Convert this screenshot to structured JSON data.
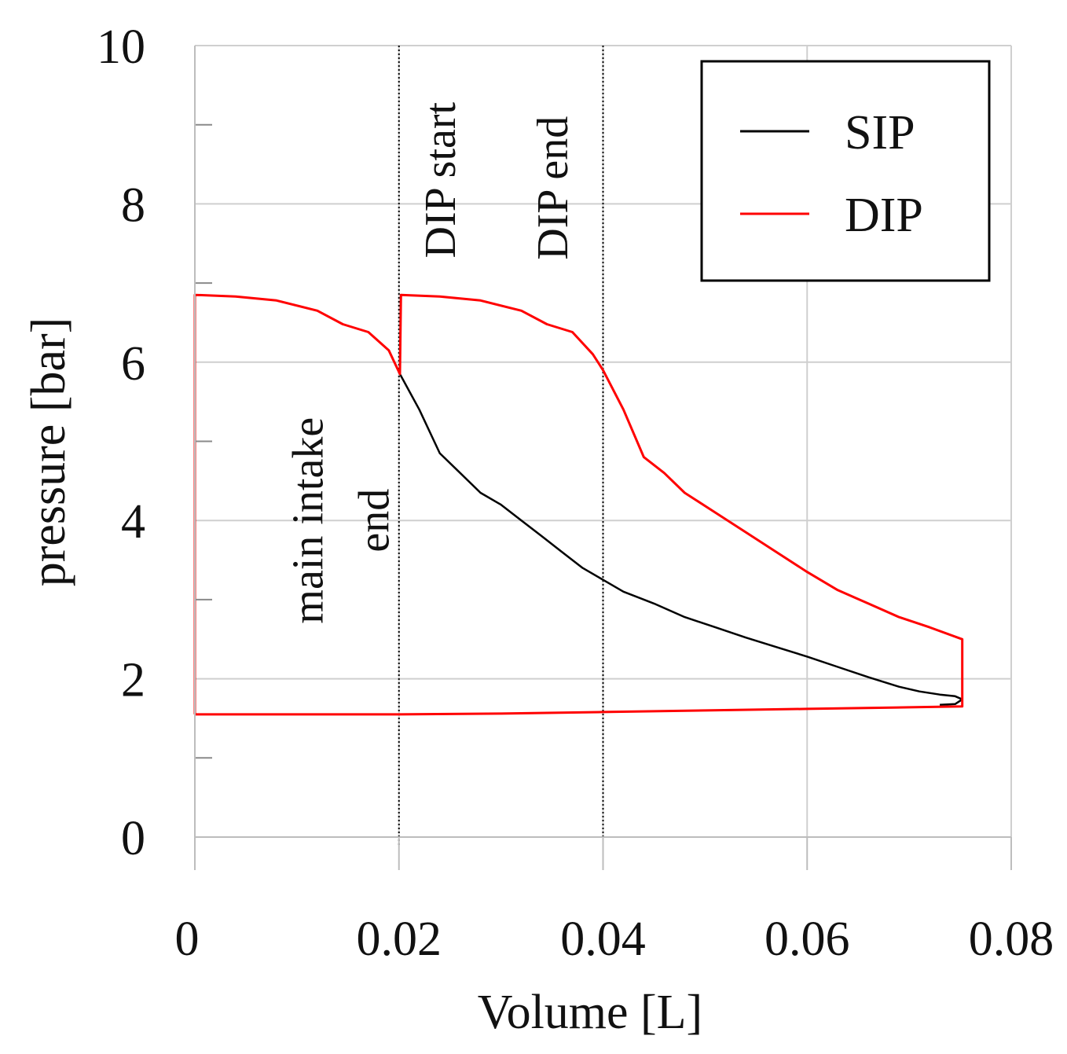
{
  "chart_data": {
    "type": "line",
    "title": "",
    "xlabel": "Volume [L]",
    "ylabel": "pressure [bar]",
    "xlim": [
      0,
      0.08
    ],
    "ylim": [
      0,
      10
    ],
    "x_ticks": [
      0,
      0.02,
      0.04,
      0.06,
      0.08
    ],
    "x_tick_labels": [
      "0",
      "0.02",
      "0.04",
      "0.06",
      "0.08"
    ],
    "y_ticks": [
      0,
      2,
      4,
      6,
      8,
      10
    ],
    "y_tick_labels": [
      "0",
      "2",
      "4",
      "6",
      "8",
      "10"
    ],
    "grid": true,
    "legend_position": "top-right",
    "vlines": [
      0.02,
      0.04
    ],
    "annotations": [
      {
        "id": "main",
        "lines": [
          "main intake",
          "end"
        ],
        "x": 0.0125,
        "y": 4.0,
        "rotation": -90
      },
      {
        "id": "dip_start",
        "lines": [
          "DIP start"
        ],
        "x": 0.0255,
        "y": 8.3,
        "rotation": -90
      },
      {
        "id": "dip_end",
        "lines": [
          "DIP end"
        ],
        "x": 0.0365,
        "y": 8.2,
        "rotation": -90
      }
    ],
    "series": [
      {
        "name": "SIP",
        "color": "#000000",
        "points": [
          [
            0.0201,
            5.85
          ],
          [
            0.022,
            5.4
          ],
          [
            0.024,
            4.85
          ],
          [
            0.026,
            4.6
          ],
          [
            0.028,
            4.35
          ],
          [
            0.03,
            4.2
          ],
          [
            0.032,
            4.0
          ],
          [
            0.034,
            3.8
          ],
          [
            0.036,
            3.6
          ],
          [
            0.038,
            3.4
          ],
          [
            0.04,
            3.25
          ],
          [
            0.042,
            3.1
          ],
          [
            0.045,
            2.95
          ],
          [
            0.048,
            2.78
          ],
          [
            0.051,
            2.65
          ],
          [
            0.054,
            2.52
          ],
          [
            0.057,
            2.4
          ],
          [
            0.06,
            2.28
          ],
          [
            0.063,
            2.15
          ],
          [
            0.066,
            2.02
          ],
          [
            0.069,
            1.9
          ],
          [
            0.071,
            1.84
          ],
          [
            0.073,
            1.8
          ],
          [
            0.0745,
            1.78
          ],
          [
            0.0752,
            1.74
          ],
          [
            0.0745,
            1.68
          ],
          [
            0.073,
            1.67
          ]
        ]
      },
      {
        "name": "DIP",
        "color": "#ff0000",
        "points": [
          [
            0.0,
            1.55
          ],
          [
            0.0,
            6.85
          ],
          [
            0.004,
            6.83
          ],
          [
            0.008,
            6.78
          ],
          [
            0.012,
            6.65
          ],
          [
            0.0145,
            6.48
          ],
          [
            0.017,
            6.38
          ],
          [
            0.019,
            6.15
          ],
          [
            0.0201,
            5.85
          ],
          [
            0.0202,
            6.85
          ],
          [
            0.024,
            6.83
          ],
          [
            0.028,
            6.78
          ],
          [
            0.032,
            6.65
          ],
          [
            0.0345,
            6.48
          ],
          [
            0.037,
            6.38
          ],
          [
            0.039,
            6.1
          ],
          [
            0.04,
            5.9
          ],
          [
            0.042,
            5.4
          ],
          [
            0.044,
            4.8
          ],
          [
            0.046,
            4.6
          ],
          [
            0.048,
            4.35
          ],
          [
            0.051,
            4.1
          ],
          [
            0.054,
            3.85
          ],
          [
            0.057,
            3.6
          ],
          [
            0.06,
            3.35
          ],
          [
            0.063,
            3.12
          ],
          [
            0.066,
            2.95
          ],
          [
            0.069,
            2.78
          ],
          [
            0.072,
            2.65
          ],
          [
            0.0752,
            2.5
          ],
          [
            0.0752,
            1.65
          ],
          [
            0.07,
            1.64
          ],
          [
            0.06,
            1.62
          ],
          [
            0.05,
            1.6
          ],
          [
            0.04,
            1.58
          ],
          [
            0.03,
            1.56
          ],
          [
            0.02,
            1.55
          ],
          [
            0.01,
            1.55
          ],
          [
            0.0,
            1.55
          ]
        ]
      }
    ]
  }
}
